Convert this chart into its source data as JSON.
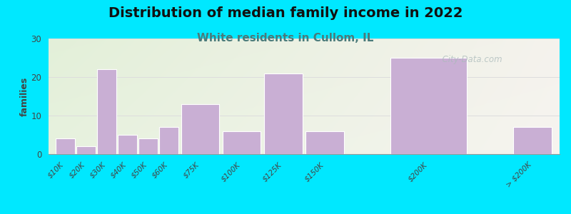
{
  "title": "Distribution of median family income in 2022",
  "subtitle": "White residents in Cullom, IL",
  "title_fontsize": 14,
  "subtitle_fontsize": 11,
  "subtitle_color": "#4a7a7a",
  "ylabel": "families",
  "ylabel_fontsize": 9,
  "background_outer": "#00e8ff",
  "bar_color": "#c9afd4",
  "bar_edge_color": "#ffffff",
  "categories": [
    "$10K",
    "$20K",
    "$30K",
    "$40K",
    "$50K",
    "$60K",
    "$75K",
    "$100K",
    "$125K",
    "$150K",
    "$200K",
    "> $200K"
  ],
  "values": [
    4,
    2,
    22,
    5,
    4,
    7,
    13,
    6,
    21,
    6,
    25,
    7
  ],
  "ylim": [
    0,
    30
  ],
  "yticks": [
    0,
    10,
    20,
    30
  ],
  "watermark": "  City-Data.com",
  "grid_color": "#dddddd",
  "tick_label_fontsize": 7.5,
  "title_color": "#111111",
  "bar_positions": [
    0,
    1,
    2,
    3,
    4,
    5,
    6,
    8,
    10,
    12,
    16,
    22
  ],
  "bar_widths": [
    1,
    1,
    1,
    1,
    1,
    1,
    2,
    2,
    2,
    2,
    4,
    2
  ]
}
